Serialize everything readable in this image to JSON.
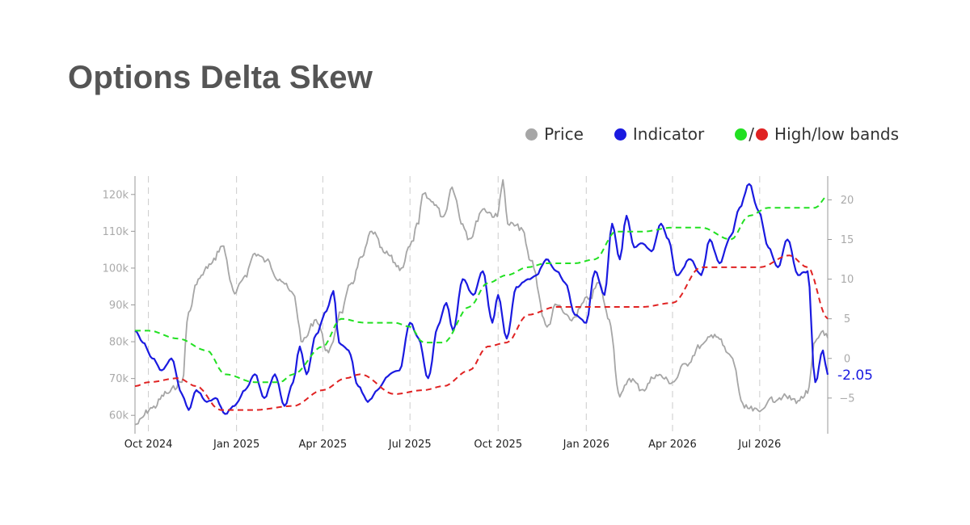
{
  "header": {
    "title": "Options Delta Skew"
  },
  "legend": {
    "price": "Price",
    "indicator": "Indicator",
    "bands_separator": "/",
    "bands": "High/low bands"
  },
  "colors": {
    "title": "#555555",
    "price": "#a6a6a6",
    "indicator": "#1a1ae0",
    "high_band": "#22e022",
    "low_band": "#e02222",
    "gridline": "#cccccc"
  },
  "chart_data": {
    "type": "line",
    "title": "Options Delta Skew",
    "x_axis": {
      "type": "date",
      "range": [
        "2024-09-17",
        "2026-09-10"
      ],
      "tick_labels": [
        "Oct 2024",
        "Jan 2025",
        "Apr 2025",
        "Jul 2025",
        "Oct 2025",
        "Jan 2026",
        "Apr 2026",
        "Jul 2026"
      ],
      "tick_dates": [
        "2024-10-01",
        "2025-01-01",
        "2025-04-01",
        "2025-07-01",
        "2025-10-01",
        "2026-01-01",
        "2026-04-01",
        "2026-07-01"
      ],
      "gridlines": "dashed vertical"
    },
    "y_axis_left": {
      "series": "Price",
      "range": [
        55000,
        125000
      ],
      "tick_values": [
        60000,
        70000,
        80000,
        90000,
        100000,
        110000,
        120000
      ],
      "tick_labels": [
        "60k",
        "70k",
        "80k",
        "90k",
        "100k",
        "110k",
        "120k"
      ]
    },
    "y_axis_right": {
      "series": "Indicator",
      "range": [
        -9.5,
        23
      ],
      "tick_values": [
        -5,
        0,
        5,
        10,
        15,
        20
      ],
      "tick_labels": [
        "−5",
        "0",
        "5",
        "10",
        "15",
        "20"
      ]
    },
    "legend_position": "top-right",
    "last_value_label": "-2.05",
    "series": [
      {
        "name": "Price",
        "axis": "left",
        "style": "solid",
        "color": "#a6a6a6",
        "points": [
          [
            "2024-09-17",
            57500
          ],
          [
            "2024-10-05",
            62000
          ],
          [
            "2024-10-20",
            66000
          ],
          [
            "2024-11-05",
            69000
          ],
          [
            "2024-11-12",
            88000
          ],
          [
            "2024-11-22",
            97000
          ],
          [
            "2024-12-05",
            101000
          ],
          [
            "2024-12-17",
            106000
          ],
          [
            "2024-12-30",
            93000
          ],
          [
            "2025-01-10",
            98000
          ],
          [
            "2025-01-20",
            104000
          ],
          [
            "2025-02-01",
            102000
          ],
          [
            "2025-02-15",
            97000
          ],
          [
            "2025-03-01",
            93000
          ],
          [
            "2025-03-11",
            80000
          ],
          [
            "2025-03-25",
            86000
          ],
          [
            "2025-04-07",
            77000
          ],
          [
            "2025-04-20",
            88000
          ],
          [
            "2025-05-01",
            96000
          ],
          [
            "2025-05-12",
            103000
          ],
          [
            "2025-05-22",
            110000
          ],
          [
            "2025-06-05",
            104000
          ],
          [
            "2025-06-22",
            100000
          ],
          [
            "2025-07-01",
            106000
          ],
          [
            "2025-07-10",
            112000
          ],
          [
            "2025-07-14",
            120000
          ],
          [
            "2025-07-25",
            118000
          ],
          [
            "2025-08-05",
            114000
          ],
          [
            "2025-08-14",
            122000
          ],
          [
            "2025-08-25",
            112000
          ],
          [
            "2025-09-01",
            108000
          ],
          [
            "2025-09-15",
            116000
          ],
          [
            "2025-09-30",
            114000
          ],
          [
            "2025-10-06",
            124000
          ],
          [
            "2025-10-11",
            112000
          ],
          [
            "2025-10-25",
            111000
          ],
          [
            "2025-11-04",
            102000
          ],
          [
            "2025-11-21",
            84000
          ],
          [
            "2025-12-01",
            90000
          ],
          [
            "2025-12-15",
            86000
          ],
          [
            "2026-01-05",
            92000
          ],
          [
            "2026-01-14",
            96000
          ],
          [
            "2026-01-25",
            86000
          ],
          [
            "2026-02-05",
            65000
          ],
          [
            "2026-02-15",
            70000
          ],
          [
            "2026-03-01",
            67000
          ],
          [
            "2026-03-15",
            71000
          ],
          [
            "2026-04-01",
            69000
          ],
          [
            "2026-04-15",
            74000
          ],
          [
            "2026-05-01",
            79000
          ],
          [
            "2026-05-15",
            82000
          ],
          [
            "2026-06-01",
            76000
          ],
          [
            "2026-06-15",
            62000
          ],
          [
            "2026-07-01",
            61000
          ],
          [
            "2026-07-10",
            64000
          ],
          [
            "2026-07-25",
            65000
          ],
          [
            "2026-08-10",
            64000
          ],
          [
            "2026-08-20",
            66000
          ],
          [
            "2026-08-28",
            80000
          ],
          [
            "2026-09-05",
            83000
          ],
          [
            "2026-09-10",
            81000
          ]
        ]
      },
      {
        "name": "Indicator",
        "axis": "right",
        "style": "solid",
        "color": "#1a1ae0",
        "points": [
          [
            "2024-09-17",
            3.5
          ],
          [
            "2024-09-25",
            2.0
          ],
          [
            "2024-10-05",
            0
          ],
          [
            "2024-10-15",
            -1.5
          ],
          [
            "2024-10-25",
            0
          ],
          [
            "2024-11-05",
            -4.5
          ],
          [
            "2024-11-12",
            -6.5
          ],
          [
            "2024-11-20",
            -4.0
          ],
          [
            "2024-12-01",
            -5.5
          ],
          [
            "2024-12-10",
            -5.0
          ],
          [
            "2024-12-20",
            -7.0
          ],
          [
            "2024-12-30",
            -6.0
          ],
          [
            "2025-01-10",
            -4.0
          ],
          [
            "2025-01-20",
            -2.0
          ],
          [
            "2025-01-30",
            -5.0
          ],
          [
            "2025-02-10",
            -2.0
          ],
          [
            "2025-02-20",
            -6.0
          ],
          [
            "2025-03-01",
            -3.0
          ],
          [
            "2025-03-08",
            1.5
          ],
          [
            "2025-03-15",
            -2.0
          ],
          [
            "2025-03-25",
            3.0
          ],
          [
            "2025-04-05",
            6.0
          ],
          [
            "2025-04-12",
            8.5
          ],
          [
            "2025-04-18",
            2.0
          ],
          [
            "2025-04-28",
            1.0
          ],
          [
            "2025-05-08",
            -3.5
          ],
          [
            "2025-05-18",
            -5.5
          ],
          [
            "2025-05-28",
            -4.0
          ],
          [
            "2025-06-10",
            -2.0
          ],
          [
            "2025-06-20",
            -1.5
          ],
          [
            "2025-07-01",
            4.5
          ],
          [
            "2025-07-10",
            2.5
          ],
          [
            "2025-07-20",
            -2.5
          ],
          [
            "2025-07-30",
            4.0
          ],
          [
            "2025-08-08",
            7.0
          ],
          [
            "2025-08-15",
            3.5
          ],
          [
            "2025-08-25",
            10.0
          ],
          [
            "2025-09-05",
            8.0
          ],
          [
            "2025-09-15",
            11.0
          ],
          [
            "2025-09-25",
            4.5
          ],
          [
            "2025-10-01",
            8.0
          ],
          [
            "2025-10-10",
            2.5
          ],
          [
            "2025-10-20",
            9.0
          ],
          [
            "2025-11-01",
            10.0
          ],
          [
            "2025-11-10",
            10.5
          ],
          [
            "2025-11-20",
            12.5
          ],
          [
            "2025-12-01",
            11.0
          ],
          [
            "2025-12-10",
            9.5
          ],
          [
            "2025-12-20",
            5.5
          ],
          [
            "2026-01-01",
            4.5
          ],
          [
            "2026-01-10",
            11.0
          ],
          [
            "2026-01-20",
            8.0
          ],
          [
            "2026-01-28",
            17.0
          ],
          [
            "2026-02-05",
            12.5
          ],
          [
            "2026-02-12",
            18.0
          ],
          [
            "2026-02-20",
            14.0
          ],
          [
            "2026-03-01",
            14.5
          ],
          [
            "2026-03-10",
            13.5
          ],
          [
            "2026-03-20",
            17.0
          ],
          [
            "2026-03-28",
            15.0
          ],
          [
            "2026-04-05",
            10.5
          ],
          [
            "2026-04-20",
            12.5
          ],
          [
            "2026-05-01",
            10.5
          ],
          [
            "2026-05-10",
            15.0
          ],
          [
            "2026-05-20",
            12.0
          ],
          [
            "2026-06-01",
            15.5
          ],
          [
            "2026-06-10",
            19.0
          ],
          [
            "2026-06-20",
            22.0
          ],
          [
            "2026-06-30",
            18.5
          ],
          [
            "2026-07-10",
            14.0
          ],
          [
            "2026-07-20",
            11.5
          ],
          [
            "2026-07-30",
            15.0
          ],
          [
            "2026-08-10",
            10.5
          ],
          [
            "2026-08-20",
            11.0
          ],
          [
            "2026-08-28",
            -3.0
          ],
          [
            "2026-09-05",
            1.0
          ],
          [
            "2026-09-10",
            -2.05
          ]
        ]
      },
      {
        "name": "High band",
        "axis": "right",
        "style": "dashed",
        "color": "#22e022",
        "points": [
          [
            "2024-09-17",
            3.5
          ],
          [
            "2024-10-01",
            3.5
          ],
          [
            "2024-11-01",
            2.5
          ],
          [
            "2024-12-01",
            1.0
          ],
          [
            "2024-12-20",
            -2.0
          ],
          [
            "2025-01-20",
            -3.0
          ],
          [
            "2025-02-15",
            -3.0
          ],
          [
            "2025-03-01",
            -2.0
          ],
          [
            "2025-04-01",
            1.5
          ],
          [
            "2025-04-20",
            5.0
          ],
          [
            "2025-05-15",
            4.5
          ],
          [
            "2025-06-15",
            4.5
          ],
          [
            "2025-07-01",
            4.0
          ],
          [
            "2025-07-15",
            2.0
          ],
          [
            "2025-08-05",
            2.0
          ],
          [
            "2025-09-01",
            6.5
          ],
          [
            "2025-09-20",
            9.5
          ],
          [
            "2025-10-10",
            10.5
          ],
          [
            "2025-11-01",
            11.5
          ],
          [
            "2025-11-20",
            12.0
          ],
          [
            "2025-12-20",
            12.0
          ],
          [
            "2026-01-10",
            12.5
          ],
          [
            "2026-02-01",
            16.0
          ],
          [
            "2026-03-01",
            16.0
          ],
          [
            "2026-04-01",
            16.5
          ],
          [
            "2026-05-01",
            16.5
          ],
          [
            "2026-06-01",
            15.0
          ],
          [
            "2026-06-20",
            18.0
          ],
          [
            "2026-07-10",
            19.0
          ],
          [
            "2026-08-10",
            19.0
          ],
          [
            "2026-08-28",
            19.0
          ],
          [
            "2026-09-10",
            20.5
          ]
        ]
      },
      {
        "name": "Low band",
        "axis": "right",
        "style": "dashed",
        "color": "#e02222",
        "points": [
          [
            "2024-09-17",
            -3.5
          ],
          [
            "2024-10-01",
            -3.0
          ],
          [
            "2024-11-01",
            -2.5
          ],
          [
            "2024-11-20",
            -3.5
          ],
          [
            "2024-12-15",
            -6.5
          ],
          [
            "2025-01-20",
            -6.5
          ],
          [
            "2025-03-01",
            -6.0
          ],
          [
            "2025-04-01",
            -4.0
          ],
          [
            "2025-04-25",
            -2.5
          ],
          [
            "2025-05-10",
            -2.0
          ],
          [
            "2025-06-15",
            -4.5
          ],
          [
            "2025-07-15",
            -4.0
          ],
          [
            "2025-08-05",
            -3.5
          ],
          [
            "2025-09-01",
            -1.5
          ],
          [
            "2025-09-20",
            1.5
          ],
          [
            "2025-10-10",
            2.0
          ],
          [
            "2025-11-01",
            5.5
          ],
          [
            "2025-12-01",
            6.5
          ],
          [
            "2026-01-01",
            6.5
          ],
          [
            "2026-02-01",
            6.5
          ],
          [
            "2026-03-01",
            6.5
          ],
          [
            "2026-04-01",
            7.0
          ],
          [
            "2026-05-01",
            11.5
          ],
          [
            "2026-06-01",
            11.5
          ],
          [
            "2026-07-01",
            11.5
          ],
          [
            "2026-08-01",
            13.0
          ],
          [
            "2026-08-20",
            11.5
          ],
          [
            "2026-09-10",
            5.0
          ]
        ]
      }
    ]
  }
}
